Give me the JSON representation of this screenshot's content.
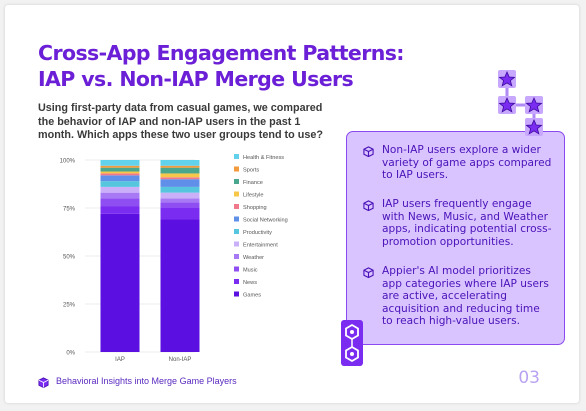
{
  "page": {
    "title_line1": "Cross-App Engagement Patterns:",
    "title_line2": "IAP vs. Non-IAP Merge Users",
    "intro": "Using first-party data from casual games, we compared the behavior of IAP  and non-IAP users in the past 1 month. Which apps these two user groups tend to use?",
    "footer": "Behavioral Insights into Merge Game Players",
    "page_number": "03"
  },
  "insights": [
    "Non-IAP users explore a wider variety of game apps compared to IAP users.",
    "IAP users frequently engage with News, Music, and Weather apps, indicating potential cross-promotion opportunities.",
    "Appier's AI model prioritizes app categories where IAP users are active, accelerating acquisition and reducing time to reach high-value users."
  ],
  "colors": {
    "accent": "#6b1fd6",
    "panel_bg": "#d9c4ff",
    "panel_border": "#8a4af0",
    "text_purple": "#4a12b8",
    "pagenum": "#b9a3f0"
  },
  "icons": {
    "bullet": "cube-icon",
    "footer": "cube-icon",
    "decoration_top": "star-network-icon",
    "decoration_bottom": "hexagon-link-icon"
  },
  "chart_data": {
    "type": "bar",
    "stacked": true,
    "normalized": true,
    "categories": [
      "IAP",
      "Non-IAP"
    ],
    "ylim": [
      0,
      100
    ],
    "yticks": [
      "0%",
      "25%",
      "50%",
      "75%",
      "100%"
    ],
    "legend_position": "right",
    "series": [
      {
        "name": "Games",
        "color": "#5b0fe0",
        "values": [
          72,
          69
        ]
      },
      {
        "name": "News",
        "color": "#7a2cf0",
        "values": [
          4,
          6
        ]
      },
      {
        "name": "Music",
        "color": "#8e4ef2",
        "values": [
          4,
          3
        ]
      },
      {
        "name": "Weather",
        "color": "#a779f5",
        "values": [
          3,
          2
        ]
      },
      {
        "name": "Entertainment",
        "color": "#c9b0f9",
        "values": [
          3,
          3
        ]
      },
      {
        "name": "Productivity",
        "color": "#56c6de",
        "values": [
          3,
          3
        ]
      },
      {
        "name": "Social Networking",
        "color": "#5f8fe8",
        "values": [
          3,
          4
        ]
      },
      {
        "name": "Shopping",
        "color": "#f07a8a",
        "values": [
          1,
          1
        ]
      },
      {
        "name": "Lifestyle",
        "color": "#f7c74a",
        "values": [
          1,
          2
        ]
      },
      {
        "name": "Finance",
        "color": "#4aa68c",
        "values": [
          2,
          3
        ]
      },
      {
        "name": "Sports",
        "color": "#f39a3c",
        "values": [
          1,
          1
        ]
      },
      {
        "name": "Health & Fitness",
        "color": "#62d1ec",
        "values": [
          3,
          3
        ]
      }
    ]
  }
}
